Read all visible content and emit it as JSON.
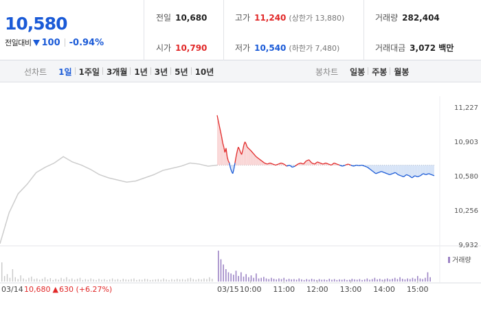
{
  "header": {
    "price": "10,580",
    "change_label": "전일대비",
    "change_value": "100",
    "change_pct": "-0.94%",
    "prev_close_label": "전일",
    "prev_close": "10,680",
    "open_label": "시가",
    "open": "10,790",
    "high_label": "고가",
    "high": "11,240",
    "upper_limit": "(상한가 13,880)",
    "low_label": "저가",
    "low": "10,540",
    "lower_limit": "(하한가 7,480)",
    "volume_label": "거래량",
    "volume": "282,404",
    "amount_label": "거래대금",
    "amount": "3,072 백만"
  },
  "toolbar": {
    "line_chart_label": "선차트",
    "line_periods": [
      "1일",
      "1주일",
      "3개월",
      "1년",
      "3년",
      "5년",
      "10년"
    ],
    "active_period": "1일",
    "candle_chart_label": "봉차트",
    "candle_periods": [
      "일봉",
      "주봉",
      "월봉"
    ]
  },
  "colors": {
    "up": "#e12828",
    "down": "#1a5ad7",
    "prev_line": "#cccccc",
    "up_fill": "#f9d6d6",
    "down_fill": "#d7e4f7",
    "volume_prev": "#c8c8c8",
    "volume_today": "#9c84c5"
  },
  "chart_data": {
    "type": "line",
    "y_ticks": [
      "11,227",
      "10,903",
      "10,580",
      "10,256",
      "9,932"
    ],
    "ylim": [
      9932,
      11227
    ],
    "baseline": 10680,
    "prev_day_label": "03/14",
    "prev_day_close": "10,680",
    "prev_day_change_arrow": "▲",
    "prev_day_change": "630 (+6.27%)",
    "today_label": "03/15",
    "time_ticks": [
      "10:00",
      "11:00",
      "12:00",
      "13:00",
      "14:00",
      "15:00"
    ],
    "volume_legend": "거래량",
    "prev_day_series": [
      9940,
      10230,
      10410,
      10500,
      10610,
      10660,
      10700,
      10760,
      10710,
      10680,
      10640,
      10590,
      10560,
      10540,
      10520,
      10530,
      10560,
      10590,
      10630,
      10650,
      10670,
      10700,
      10690,
      10670,
      10680
    ],
    "today_series": [
      {
        "t": "09:00",
        "v": 11150
      },
      {
        "t": "09:02",
        "v": 11100
      },
      {
        "t": "09:04",
        "v": 11050
      },
      {
        "t": "09:06",
        "v": 11000
      },
      {
        "t": "09:08",
        "v": 10950
      },
      {
        "t": "09:10",
        "v": 10890
      },
      {
        "t": "09:12",
        "v": 10850
      },
      {
        "t": "09:14",
        "v": 10800
      },
      {
        "t": "09:16",
        "v": 10840
      },
      {
        "t": "09:18",
        "v": 10760
      },
      {
        "t": "09:20",
        "v": 10720
      },
      {
        "t": "09:22",
        "v": 10700
      },
      {
        "t": "09:24",
        "v": 10650
      },
      {
        "t": "09:26",
        "v": 10620
      },
      {
        "t": "09:28",
        "v": 10600
      },
      {
        "t": "09:30",
        "v": 10640
      },
      {
        "t": "09:32",
        "v": 10700
      },
      {
        "t": "09:34",
        "v": 10760
      },
      {
        "t": "09:36",
        "v": 10810
      },
      {
        "t": "09:38",
        "v": 10850
      },
      {
        "t": "09:40",
        "v": 10830
      },
      {
        "t": "09:42",
        "v": 10800
      },
      {
        "t": "09:44",
        "v": 10780
      },
      {
        "t": "09:46",
        "v": 10820
      },
      {
        "t": "09:48",
        "v": 10870
      },
      {
        "t": "09:50",
        "v": 10900
      },
      {
        "t": "09:52",
        "v": 10880
      },
      {
        "t": "09:54",
        "v": 10850
      },
      {
        "t": "09:56",
        "v": 10840
      },
      {
        "t": "09:58",
        "v": 10830
      },
      {
        "t": "10:00",
        "v": 10820
      },
      {
        "t": "10:05",
        "v": 10790
      },
      {
        "t": "10:10",
        "v": 10760
      },
      {
        "t": "10:15",
        "v": 10740
      },
      {
        "t": "10:20",
        "v": 10720
      },
      {
        "t": "10:25",
        "v": 10700
      },
      {
        "t": "10:30",
        "v": 10690
      },
      {
        "t": "10:35",
        "v": 10700
      },
      {
        "t": "10:40",
        "v": 10690
      },
      {
        "t": "10:45",
        "v": 10680
      },
      {
        "t": "10:50",
        "v": 10690
      },
      {
        "t": "10:55",
        "v": 10700
      },
      {
        "t": "11:00",
        "v": 10690
      },
      {
        "t": "11:05",
        "v": 10670
      },
      {
        "t": "11:10",
        "v": 10680
      },
      {
        "t": "11:15",
        "v": 10660
      },
      {
        "t": "11:20",
        "v": 10670
      },
      {
        "t": "11:25",
        "v": 10690
      },
      {
        "t": "11:30",
        "v": 10700
      },
      {
        "t": "11:35",
        "v": 10690
      },
      {
        "t": "11:40",
        "v": 10720
      },
      {
        "t": "11:45",
        "v": 10730
      },
      {
        "t": "11:50",
        "v": 10700
      },
      {
        "t": "11:55",
        "v": 10690
      },
      {
        "t": "12:00",
        "v": 10710
      },
      {
        "t": "12:05",
        "v": 10700
      },
      {
        "t": "12:10",
        "v": 10690
      },
      {
        "t": "12:15",
        "v": 10700
      },
      {
        "t": "12:20",
        "v": 10690
      },
      {
        "t": "12:25",
        "v": 10680
      },
      {
        "t": "12:30",
        "v": 10700
      },
      {
        "t": "12:35",
        "v": 10690
      },
      {
        "t": "12:40",
        "v": 10680
      },
      {
        "t": "12:45",
        "v": 10670
      },
      {
        "t": "12:50",
        "v": 10680
      },
      {
        "t": "12:55",
        "v": 10690
      },
      {
        "t": "13:00",
        "v": 10680
      },
      {
        "t": "13:05",
        "v": 10670
      },
      {
        "t": "13:10",
        "v": 10680
      },
      {
        "t": "13:15",
        "v": 10675
      },
      {
        "t": "13:20",
        "v": 10680
      },
      {
        "t": "13:25",
        "v": 10670
      },
      {
        "t": "13:30",
        "v": 10660
      },
      {
        "t": "13:35",
        "v": 10640
      },
      {
        "t": "13:40",
        "v": 10620
      },
      {
        "t": "13:45",
        "v": 10600
      },
      {
        "t": "13:50",
        "v": 10610
      },
      {
        "t": "13:55",
        "v": 10620
      },
      {
        "t": "14:00",
        "v": 10610
      },
      {
        "t": "14:05",
        "v": 10600
      },
      {
        "t": "14:10",
        "v": 10590
      },
      {
        "t": "14:15",
        "v": 10600
      },
      {
        "t": "14:20",
        "v": 10610
      },
      {
        "t": "14:25",
        "v": 10590
      },
      {
        "t": "14:30",
        "v": 10580
      },
      {
        "t": "14:35",
        "v": 10570
      },
      {
        "t": "14:40",
        "v": 10590
      },
      {
        "t": "14:45",
        "v": 10580
      },
      {
        "t": "14:50",
        "v": 10560
      },
      {
        "t": "14:55",
        "v": 10580
      },
      {
        "t": "15:00",
        "v": 10570
      },
      {
        "t": "15:05",
        "v": 10580
      },
      {
        "t": "15:10",
        "v": 10600
      },
      {
        "t": "15:15",
        "v": 10590
      },
      {
        "t": "15:20",
        "v": 10600
      },
      {
        "t": "15:25",
        "v": 10590
      },
      {
        "t": "15:30",
        "v": 10580
      }
    ],
    "prev_day_volume": [
      62,
      18,
      24,
      12,
      40,
      14,
      8,
      20,
      10,
      6,
      12,
      16,
      8,
      10,
      6,
      9,
      14,
      7,
      11,
      5,
      9,
      6,
      12,
      8,
      14,
      7,
      10,
      6,
      9,
      12,
      5,
      8,
      6,
      10,
      7,
      5,
      9,
      6,
      8,
      5,
      7,
      10,
      6,
      8,
      5,
      9,
      7,
      6,
      8,
      10,
      5,
      7,
      6,
      9,
      8,
      5,
      6,
      7,
      8,
      6,
      10,
      7,
      5,
      8,
      6,
      9,
      7,
      8,
      6,
      10,
      12,
      8,
      6,
      9,
      7,
      10,
      8,
      14,
      9
    ],
    "today_volume": [
      100,
      72,
      55,
      40,
      30,
      26,
      22,
      35,
      18,
      30,
      16,
      24,
      14,
      20,
      12,
      26,
      10,
      12,
      15,
      10,
      8,
      12,
      9,
      7,
      10,
      8,
      12,
      6,
      9,
      7,
      8,
      6,
      10,
      7,
      5,
      8,
      6,
      9,
      7,
      5,
      8,
      6,
      7,
      5,
      9,
      6,
      8,
      5,
      7,
      6,
      8,
      5,
      6,
      9,
      7,
      6,
      8,
      5,
      7,
      10,
      6,
      8,
      12,
      7,
      9,
      6,
      8,
      10,
      7,
      9,
      12,
      8,
      14,
      9,
      7,
      10,
      8,
      12,
      9,
      18,
      10,
      8,
      12,
      30,
      14
    ]
  }
}
